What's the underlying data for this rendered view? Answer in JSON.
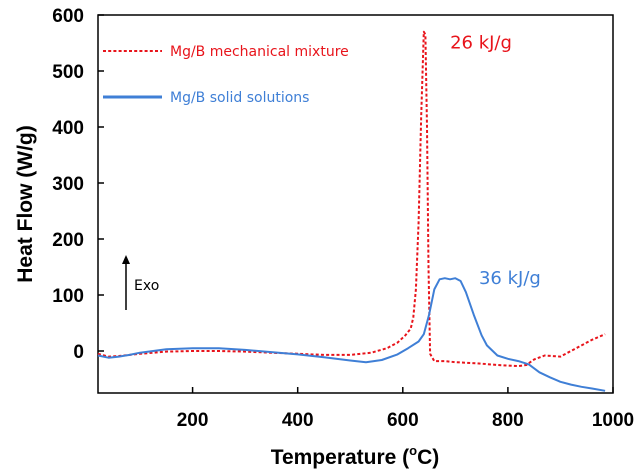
{
  "colors": {
    "mixture": "#e8141b",
    "solution": "#3f7fd6",
    "axis": "#000000"
  },
  "chart_data": {
    "type": "line",
    "title": "",
    "xlabel": "Temperature (",
    "xlabel_sup": "o",
    "xlabel_unit": "C)",
    "ylabel": "Heat Flow (W/g)",
    "xlim": [
      20,
      1000
    ],
    "ylim": [
      -75,
      600
    ],
    "xticks": [
      200,
      400,
      600,
      800,
      1000
    ],
    "xtick_labels": [
      "200",
      "400",
      "600",
      "800",
      "1000"
    ],
    "yticks": [
      0,
      100,
      200,
      300,
      400,
      500,
      600
    ],
    "ytick_labels": [
      "0",
      "100",
      "200",
      "300",
      "400",
      "500",
      "600"
    ],
    "legend_position": "top-left",
    "series": [
      {
        "name": "Mg/B mechanical mixture",
        "style": "dotted",
        "x": [
          20,
          40,
          60,
          100,
          150,
          200,
          250,
          300,
          350,
          400,
          450,
          500,
          540,
          570,
          590,
          605,
          615,
          620,
          625,
          630,
          635,
          640,
          643,
          646,
          649,
          652,
          660,
          680,
          700,
          740,
          780,
          820,
          835,
          850,
          870,
          900,
          930,
          960,
          985
        ],
        "y": [
          -5,
          -10,
          -9,
          -5,
          -1,
          0,
          0,
          -1,
          -3,
          -5,
          -7,
          -7,
          -3,
          5,
          15,
          28,
          40,
          60,
          110,
          230,
          420,
          570,
          565,
          400,
          150,
          -5,
          -18,
          -18,
          -20,
          -22,
          -25,
          -27,
          -25,
          -15,
          -8,
          -10,
          5,
          20,
          30
        ]
      },
      {
        "name": "Mg/B solid solutions",
        "style": "solid",
        "x": [
          20,
          40,
          60,
          80,
          100,
          150,
          200,
          250,
          300,
          350,
          400,
          450,
          500,
          530,
          560,
          590,
          610,
          630,
          640,
          650,
          660,
          670,
          680,
          690,
          700,
          710,
          720,
          735,
          750,
          760,
          780,
          800,
          820,
          840,
          860,
          880,
          900,
          920,
          940,
          960,
          985
        ],
        "y": [
          -8,
          -12,
          -10,
          -7,
          -3,
          3,
          5,
          5,
          2,
          -2,
          -6,
          -11,
          -17,
          -20,
          -16,
          -6,
          5,
          17,
          30,
          65,
          110,
          128,
          130,
          128,
          130,
          125,
          105,
          65,
          28,
          10,
          -8,
          -14,
          -18,
          -24,
          -38,
          -47,
          -55,
          -60,
          -64,
          -67,
          -71
        ]
      }
    ],
    "annotations": [
      {
        "text": "26 kJ/g",
        "x": 690,
        "y": 540,
        "series": 0
      },
      {
        "text": "36 kJ/g",
        "x": 745,
        "y": 120,
        "series": 1
      },
      {
        "text": "Exo",
        "x": 65,
        "y": 120
      }
    ]
  }
}
